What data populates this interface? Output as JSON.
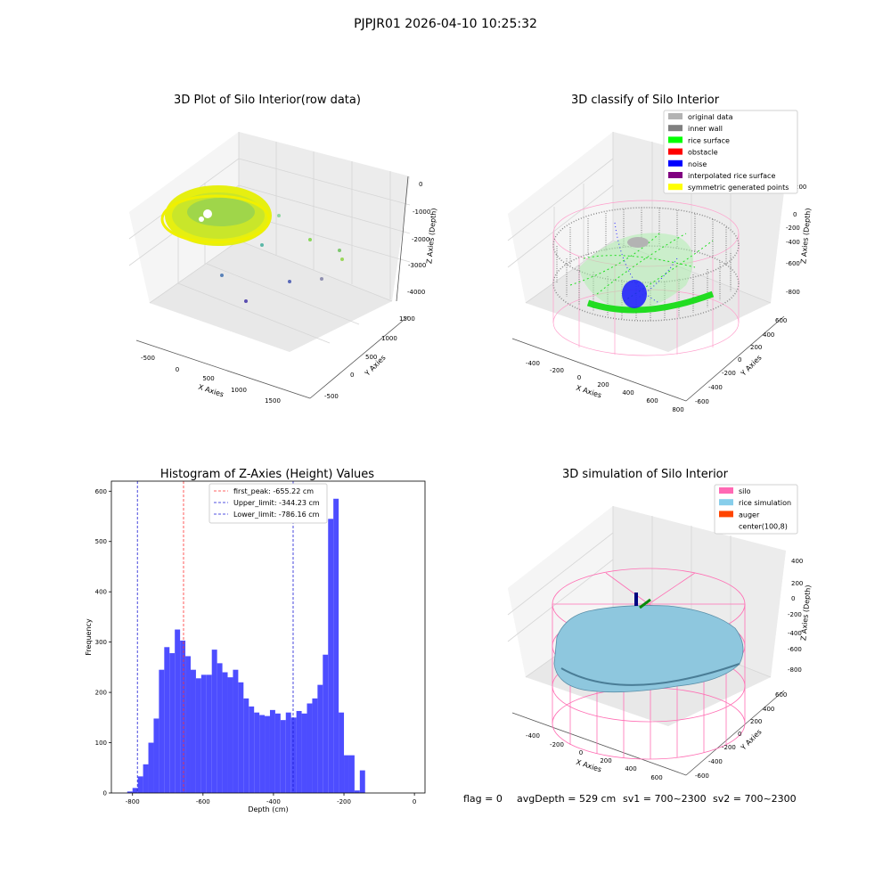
{
  "suptitle": "PJPJR01 2026-04-10 10:25:32",
  "colors": {
    "hist_bar": "#4d4dff",
    "first_peak": "#ff3333",
    "limits": "#1a1ad6",
    "rice_surface": "#1aff1a",
    "noise": "#0000e6",
    "wall": "#888888",
    "silo_pink": "#ff69b4",
    "rice_sim": "#87c4dd"
  },
  "panel_raw": {
    "title": "3D Plot of Silo Interior(row data)",
    "x_label": "X Axies",
    "y_label": "Y Axies",
    "z_label": "Z Axies (Depth)",
    "x_ticks": [
      "-500",
      "0",
      "500",
      "1000",
      "1500"
    ],
    "y_ticks": [
      "1500",
      "1000",
      "500",
      "0",
      "-500"
    ],
    "z_ticks": [
      "0",
      "-1000",
      "-2000",
      "-3000",
      "-4000"
    ]
  },
  "panel_classify": {
    "title": "3D classify of Silo Interior",
    "x_label": "X Axies",
    "y_label": "Y Axies",
    "z_label": "Z Axies (Depth)",
    "x_ticks": [
      "-400",
      "-200",
      "0",
      "200",
      "400",
      "600",
      "800"
    ],
    "y_ticks": [
      "600",
      "400",
      "200",
      "0",
      "-200",
      "-400",
      "-600"
    ],
    "z_ticks": [
      "200",
      "0",
      "-200",
      "-400",
      "-600",
      "-800"
    ],
    "legend": [
      {
        "label": "original data",
        "color": "#b3b3b3"
      },
      {
        "label": "inner wall",
        "color": "#808080"
      },
      {
        "label": "rice surface",
        "color": "#00ff00"
      },
      {
        "label": "obstacle",
        "color": "#ff0000"
      },
      {
        "label": "noise",
        "color": "#0000ff"
      },
      {
        "label": "interpolated rice surface",
        "color": "#800080"
      },
      {
        "label": "symmetric generated points",
        "color": "#ffff00"
      }
    ]
  },
  "panel_sim": {
    "title": "3D simulation of Silo Interior",
    "x_label": "X Axies",
    "y_label": "Y Axies",
    "z_label": "Z Axies (Depth)",
    "x_ticks": [
      "-400",
      "-200",
      "0",
      "200",
      "400",
      "600"
    ],
    "y_ticks": [
      "600",
      "400",
      "200",
      "0",
      "-200",
      "-400",
      "-600"
    ],
    "z_ticks": [
      "400",
      "200",
      "0",
      "-200",
      "-400",
      "-600",
      "-800"
    ],
    "legend": [
      {
        "label": "silo",
        "color": "#ff69b4"
      },
      {
        "label": "rice simulation",
        "color": "#87ceeb"
      },
      {
        "label": "auger",
        "color": "#ff4500"
      },
      {
        "label": "center(100,8)",
        "color": "#ffffff"
      }
    ]
  },
  "status": {
    "flag": "flag = 0",
    "avg_depth": "avgDepth = 529 cm",
    "sv1": "sv1 = 700~2300",
    "sv2": "sv2 = 700~2300"
  },
  "chart_data": {
    "type": "bar",
    "title": "Histogram of Z-Axies (Height) Values",
    "xlabel": "Depth (cm)",
    "ylabel": "Frequency",
    "xlim": [
      -860,
      30
    ],
    "ylim": [
      0,
      620
    ],
    "x_ticks": [
      -800,
      -600,
      -400,
      -200,
      0
    ],
    "y_ticks": [
      0,
      100,
      200,
      300,
      400,
      500,
      600
    ],
    "bin_width": 15,
    "bin_start": -815,
    "values": [
      3,
      10,
      33,
      57,
      100,
      148,
      245,
      290,
      278,
      325,
      303,
      272,
      245,
      228,
      235,
      235,
      285,
      258,
      240,
      230,
      245,
      220,
      188,
      172,
      160,
      155,
      153,
      165,
      158,
      145,
      160,
      150,
      163,
      158,
      178,
      188,
      215,
      275,
      545,
      585,
      160,
      75,
      75,
      5,
      45
    ],
    "reference_lines": [
      {
        "label": "first_peak: -655.22 cm",
        "x": -655.22,
        "color": "#ff3333"
      },
      {
        "label": "Upper_limit: -344.23 cm",
        "x": -344.23,
        "color": "#1a1ad6"
      },
      {
        "label": "Lower_limit: -786.16 cm",
        "x": -786.16,
        "color": "#1a1ad6"
      }
    ]
  }
}
